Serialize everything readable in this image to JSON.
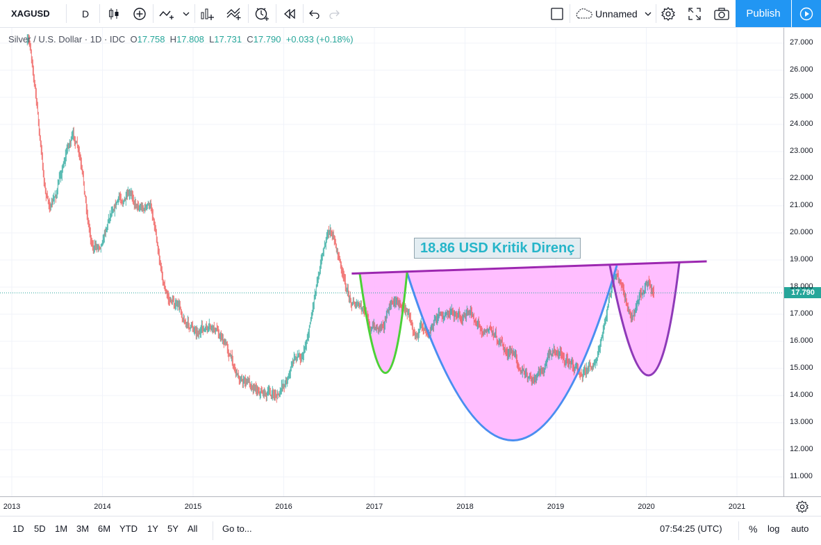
{
  "toolbar": {
    "symbol": "XAGUSD",
    "interval": "D",
    "layout_name": "Unnamed",
    "publish_label": "Publish"
  },
  "legend": {
    "title": "Silver / U.S. Dollar · 1D · IDC",
    "open_key": "O",
    "open": "17.758",
    "high_key": "H",
    "high": "17.808",
    "low_key": "L",
    "low": "17.731",
    "close_key": "C",
    "close": "17.790",
    "change": "+0.033 (+0.18%)"
  },
  "price_axis": {
    "ticks": [
      "27.000",
      "26.000",
      "25.000",
      "24.000",
      "23.000",
      "22.000",
      "21.000",
      "20.000",
      "19.000",
      "18.000",
      "17.000",
      "16.000",
      "15.000",
      "14.000",
      "13.000",
      "12.000",
      "11.000"
    ],
    "current_price": "17.790"
  },
  "time_axis": {
    "ticks": [
      "2013",
      "2014",
      "2015",
      "2016",
      "2017",
      "2018",
      "2019",
      "2020",
      "2021"
    ]
  },
  "annotation": {
    "text": "18.86 USD Kritik Direnç"
  },
  "colors": {
    "up": "#26a69a",
    "down": "#ef5350",
    "resistance": "#9c27b0",
    "cup": "#4a8ef0",
    "small_cup": "#4cd137",
    "handle": "#8e3ab8",
    "fill": "#ffb3ff",
    "accent": "#2196f3"
  },
  "bottombar": {
    "ranges": [
      "1D",
      "5D",
      "1M",
      "3M",
      "6M",
      "YTD",
      "1Y",
      "5Y",
      "All"
    ],
    "goto_label": "Go to...",
    "clock": "07:54:25 (UTC)",
    "percent": "%",
    "log": "log",
    "auto": "auto"
  },
  "chart_data": {
    "type": "candlestick",
    "symbol": "XAGUSD",
    "interval": "1D",
    "ylim": [
      10.3,
      27.6
    ],
    "xlim": [
      "2013-01",
      "2021-06"
    ],
    "x": [
      "2013-03",
      "2013-06",
      "2013-09",
      "2013-12",
      "2014-03",
      "2014-07",
      "2014-10",
      "2015-01",
      "2015-04",
      "2015-08",
      "2015-12",
      "2016-03",
      "2016-07",
      "2016-10",
      "2017-01",
      "2017-04",
      "2017-07",
      "2017-10",
      "2018-01",
      "2018-04",
      "2018-07",
      "2018-10",
      "2019-01",
      "2019-04",
      "2019-06",
      "2019-09",
      "2019-11",
      "2020-01",
      "2020-02"
    ],
    "close": [
      27.0,
      21.0,
      23.5,
      19.5,
      21.3,
      21.0,
      17.5,
      16.5,
      16.3,
      14.5,
      14.0,
      15.5,
      20.0,
      17.5,
      16.5,
      17.5,
      16.5,
      17.0,
      17.0,
      16.5,
      15.5,
      14.5,
      15.6,
      15.0,
      15.2,
      18.2,
      17.0,
      18.2,
      17.79
    ],
    "resistance": {
      "label": "18.86 USD Kritik Direnç",
      "start": [
        "2016-10",
        18.5
      ],
      "end": [
        "2020-09",
        18.95
      ]
    }
  }
}
